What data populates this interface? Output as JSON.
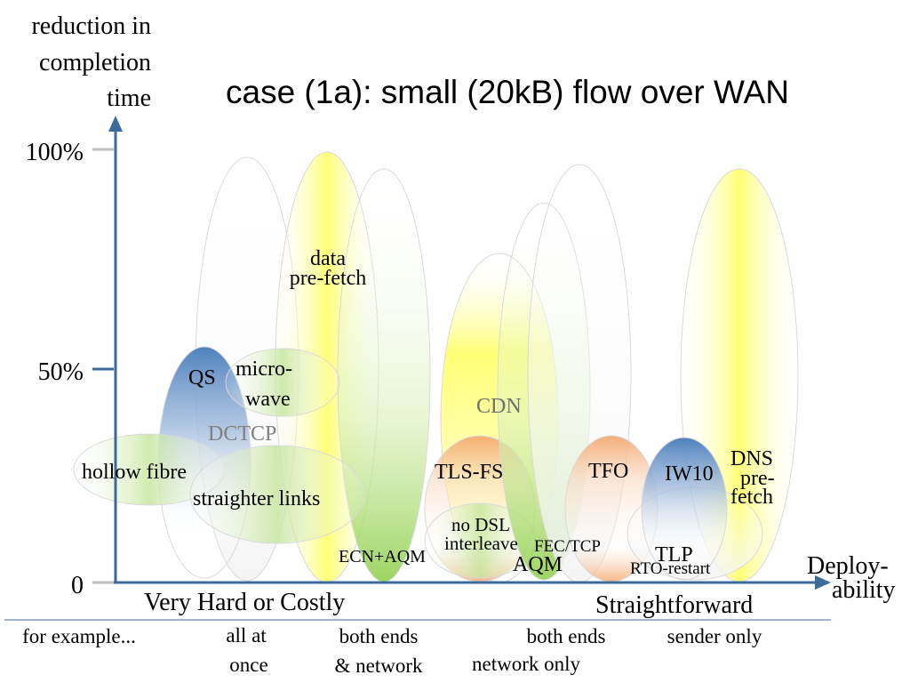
{
  "title": "case (1a): small (20kB) flow over WAN",
  "y_axis": {
    "label_lines": [
      "reduction in",
      "completion",
      "time"
    ],
    "ticks": [
      "100%",
      "50%",
      "0"
    ]
  },
  "x_axis": {
    "label_lines": [
      "Deploy-",
      "ability"
    ],
    "left_end": "Very Hard or Costly",
    "right_end": "Straightforward"
  },
  "categories": {
    "c1": "for example...",
    "c2": [
      "all at",
      "once"
    ],
    "c3": [
      "both ends",
      "& network"
    ],
    "c4a": "both ends",
    "c4b": "network only",
    "c5": "sender only"
  },
  "techniques": {
    "qs": "QS",
    "microwave": [
      "micro-",
      "wave"
    ],
    "dctcp": "DCTCP",
    "hollow_fibre": "hollow fibre",
    "straighter_links": "straighter links",
    "data_prefetch": [
      "data",
      "pre-fetch"
    ],
    "ecn_aqm": "ECN+AQM",
    "cdn": "CDN",
    "tls_fs": "TLS-FS",
    "no_dsl": [
      "no DSL",
      "interleave"
    ],
    "fec_tcp": "FEC/TCP",
    "aqm": "AQM",
    "tfo": "TFO",
    "iw10": "IW10",
    "dns_prefetch": [
      "DNS",
      "pre-",
      "fetch"
    ],
    "tlp": "TLP",
    "rto_restart": "RTO-restart"
  },
  "colors": {
    "axis": "#3a6b9a",
    "tick": "#bfbfbf",
    "blue": "#4f81bd",
    "yellow": "#ffff66",
    "green": "#92d050",
    "orange": "#f4a46a",
    "ghost": "#eeeeee"
  }
}
